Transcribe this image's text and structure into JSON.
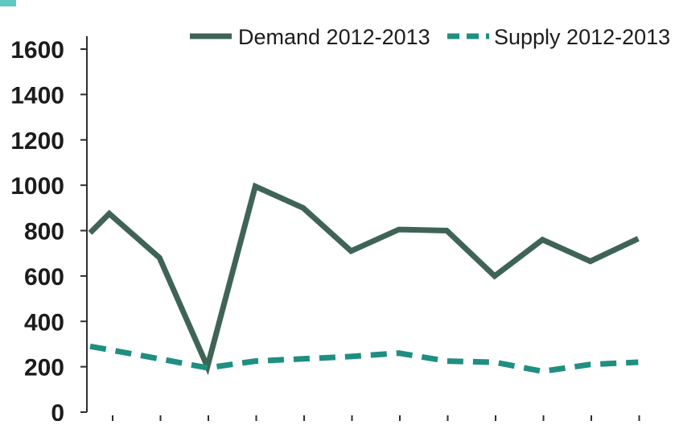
{
  "chart_data": {
    "type": "line",
    "title": "",
    "xlabel": "",
    "ylabel": "",
    "ylim": [
      0,
      1600
    ],
    "yticks": [
      0,
      200,
      400,
      600,
      800,
      1000,
      1200,
      1400,
      1600
    ],
    "ytick_labels": [
      "0",
      "200",
      "400",
      "600",
      "800",
      "1000",
      "1200",
      "1400",
      "1600"
    ],
    "x_count": 13,
    "grid": false,
    "legend_position": "top-right",
    "series": [
      {
        "name": "Demand 2012-2013",
        "style": "solid",
        "color": "#3f6457",
        "x": [
          0,
          0.4,
          1.45,
          2.45,
          3.45,
          4.45,
          5.45,
          6.45,
          7.45,
          8.45,
          9.45,
          10.45,
          11.45
        ],
        "values": [
          790,
          875,
          680,
          200,
          995,
          900,
          710,
          805,
          800,
          600,
          760,
          665,
          765
        ]
      },
      {
        "name": "Supply 2012-2013",
        "style": "dashed",
        "color": "#1f8f80",
        "x": [
          0,
          0.4,
          1.45,
          2.45,
          3.45,
          4.45,
          5.45,
          6.45,
          7.45,
          8.45,
          9.45,
          10.45,
          11.45
        ],
        "values": [
          290,
          275,
          235,
          195,
          225,
          235,
          245,
          260,
          225,
          220,
          180,
          210,
          220
        ]
      }
    ]
  }
}
